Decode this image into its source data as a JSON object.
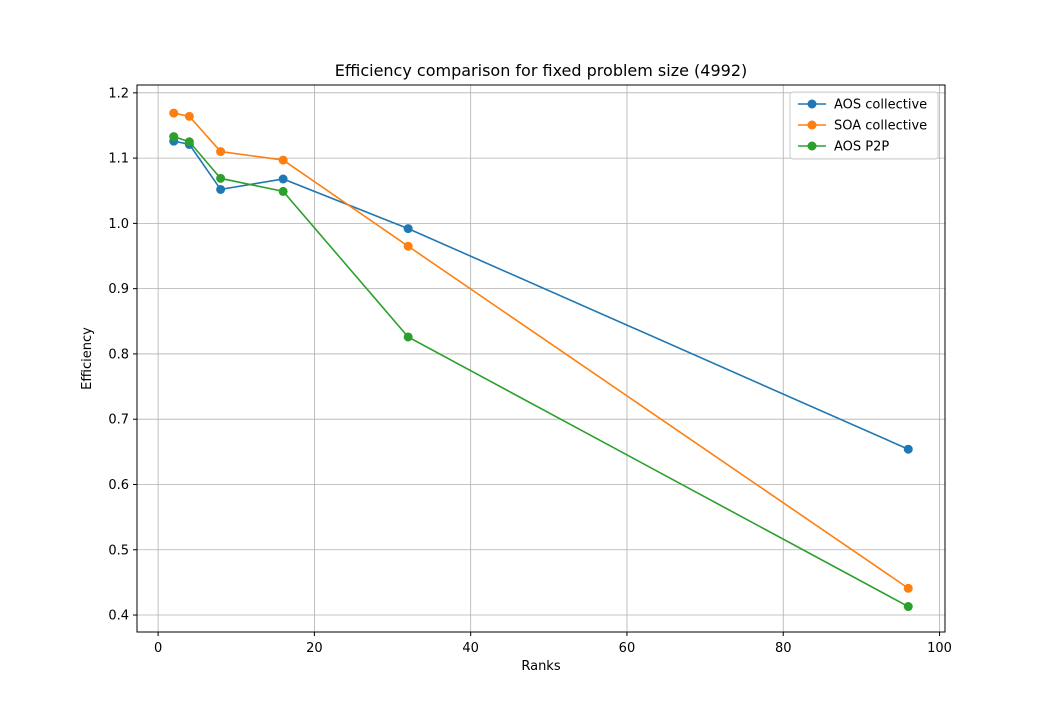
{
  "chart_data": {
    "type": "line",
    "title": "Efficiency comparison for fixed problem size (4992)",
    "xlabel": "Ranks",
    "ylabel": "Efficiency",
    "xlim": [
      -2.7,
      100.7
    ],
    "ylim": [
      0.374,
      1.212
    ],
    "xticks": [
      0,
      20,
      40,
      60,
      80,
      100
    ],
    "yticks": [
      0.4,
      0.5,
      0.6,
      0.7,
      0.8,
      0.9,
      1.0,
      1.1,
      1.2
    ],
    "xtick_labels": [
      "0",
      "20",
      "40",
      "60",
      "80",
      "100"
    ],
    "ytick_labels": [
      "0.4",
      "0.5",
      "0.6",
      "0.7",
      "0.8",
      "0.9",
      "1.0",
      "1.1",
      "1.2"
    ],
    "grid": true,
    "legend_position": "top-right",
    "x": [
      2,
      4,
      8,
      16,
      32,
      96
    ],
    "series": [
      {
        "name": "AOS collective",
        "color": "#1f77b4",
        "values": [
          1.126,
          1.121,
          1.052,
          1.068,
          0.992,
          0.654
        ]
      },
      {
        "name": "SOA collective",
        "color": "#ff7f0e",
        "values": [
          1.169,
          1.164,
          1.11,
          1.097,
          0.965,
          0.441
        ]
      },
      {
        "name": "AOS P2P",
        "color": "#2ca02c",
        "values": [
          1.133,
          1.125,
          1.069,
          1.049,
          0.826,
          0.413
        ]
      }
    ]
  }
}
